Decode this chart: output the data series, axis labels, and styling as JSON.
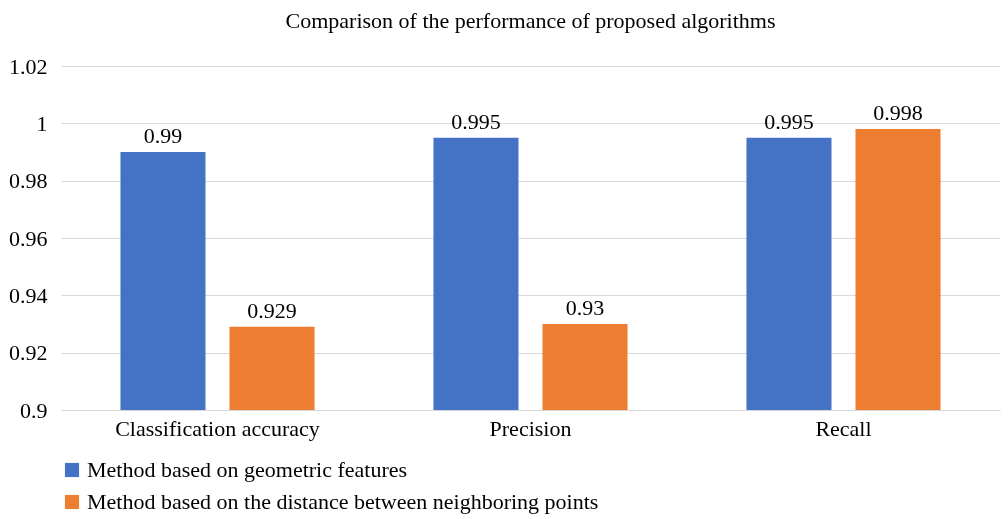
{
  "chart_data": {
    "type": "bar",
    "title": "Comparison of the performance of proposed algorithms",
    "categories": [
      "Classification accuracy",
      "Precision",
      "Recall"
    ],
    "series": [
      {
        "name": "Method based on geometric features",
        "color": "#4472c4",
        "values": [
          0.99,
          0.995,
          0.995
        ]
      },
      {
        "name": "Method based on the distance between neighboring points",
        "color": "#ed7d31",
        "values": [
          0.929,
          0.93,
          0.998
        ]
      }
    ],
    "ylim": [
      0.9,
      1.02
    ],
    "yticks": [
      0.9,
      0.92,
      0.94,
      0.96,
      0.98,
      1,
      1.02
    ],
    "grid": "y",
    "legend": "bottom",
    "data_labels": true
  }
}
